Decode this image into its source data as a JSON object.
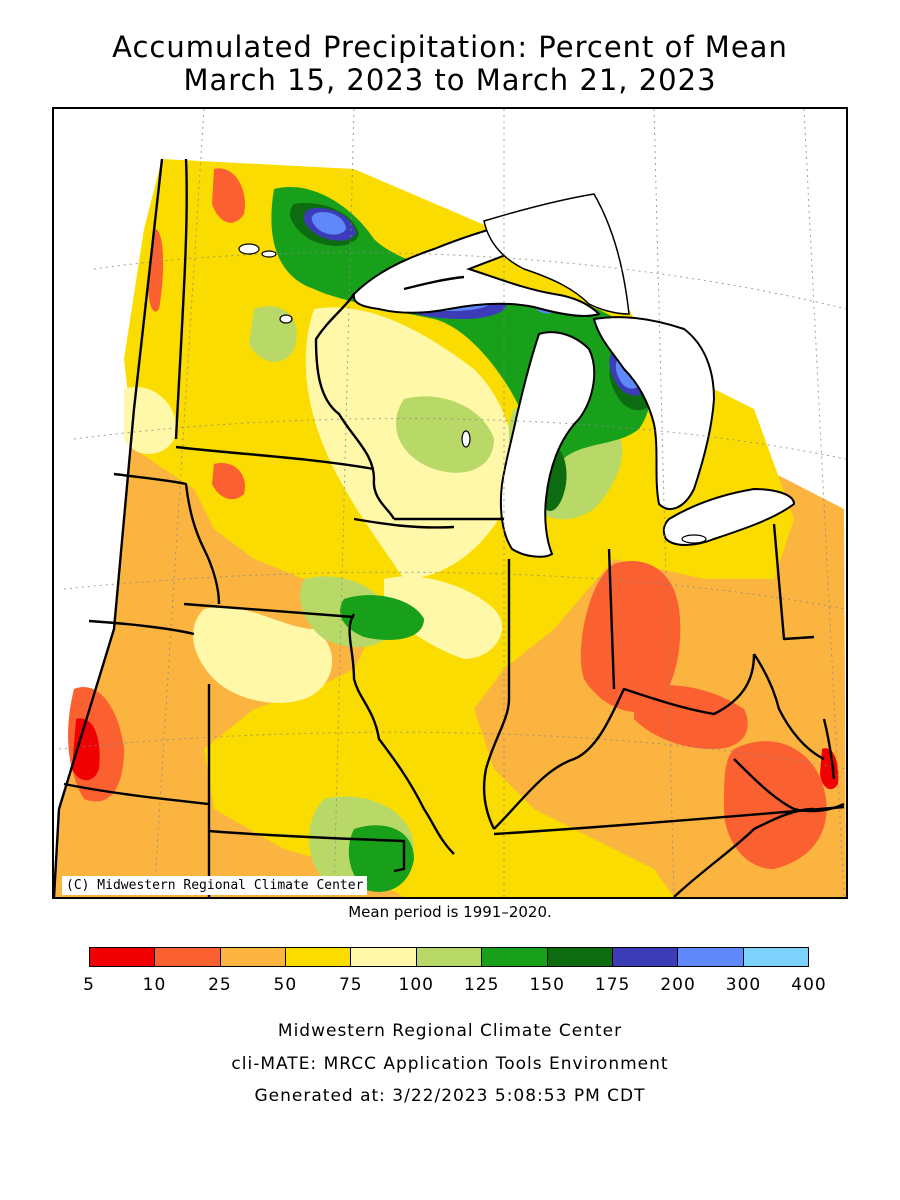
{
  "header": {
    "title_line1": "Accumulated Precipitation: Percent of Mean",
    "title_line2": "March 15, 2023 to March 21, 2023"
  },
  "map": {
    "copyright": "(C) Midwestern Regional Climate Center",
    "mean_period": "Mean period is 1991–2020.",
    "water_color": "#ffffff",
    "border_color": "#000000",
    "graticule": "dotted grid"
  },
  "legend": {
    "colors": [
      "#f00000",
      "#fa6030",
      "#fbb440",
      "#fbdc00",
      "#fff8a8",
      "#b8d968",
      "#18a01a",
      "#0d6b10",
      "#3c3cb8",
      "#5f88fa",
      "#7cd2fa"
    ],
    "ticks": [
      "5",
      "10",
      "25",
      "50",
      "75",
      "100",
      "125",
      "150",
      "175",
      "200",
      "300",
      "400"
    ]
  },
  "footer": {
    "line1": "Midwestern Regional Climate Center",
    "line2": "cli-MATE: MRCC Application Tools Environment",
    "line3": "Generated at: 3/22/2023 5:08:53 PM CDT"
  }
}
